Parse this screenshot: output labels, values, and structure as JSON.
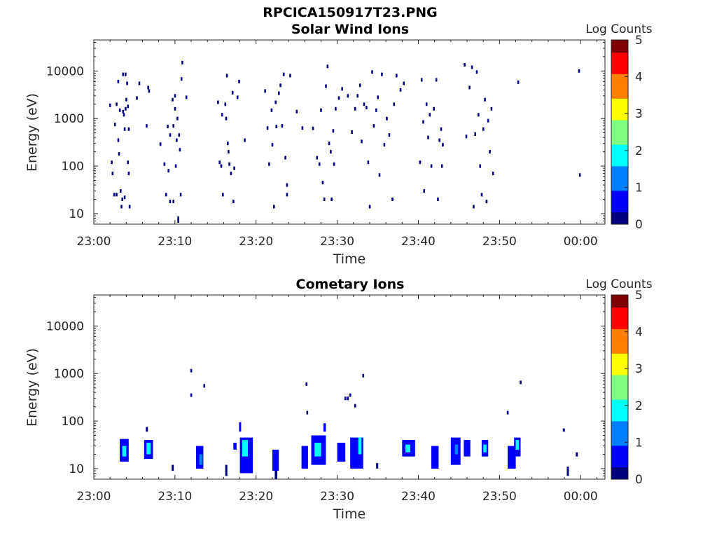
{
  "figure_title": "RPCICA150917T23.PNG",
  "colorscale": [
    "#00007f",
    "#0000ff",
    "#007fff",
    "#00ffff",
    "#7fff7f",
    "#ffff00",
    "#ff7f00",
    "#ff0000",
    "#7f0000"
  ],
  "chart_data": [
    {
      "type": "heatmap",
      "title": "Solar Wind Ions",
      "xlabel": "Time",
      "ylabel": "Energy (eV)",
      "x_ticks": [
        "23:00",
        "23:10",
        "23:20",
        "23:30",
        "23:40",
        "23:50",
        "00:00"
      ],
      "x_range_minutes": [
        0,
        63
      ],
      "y_scale": "log",
      "y_range": [
        6,
        45000
      ],
      "y_ticks": [
        10,
        100,
        1000,
        10000
      ],
      "y_tick_labels": [
        "10",
        "100",
        "1000",
        "10000"
      ],
      "colorbar": {
        "label": "Log Counts",
        "range": [
          0,
          5
        ],
        "ticks": [
          "0",
          "1",
          "2",
          "3",
          "4",
          "5"
        ]
      },
      "grid": false,
      "points": [
        [
          2.0,
          1900,
          0.2
        ],
        [
          2.2,
          120,
          0.2
        ],
        [
          2.3,
          70,
          0.2
        ],
        [
          2.6,
          750,
          0.2
        ],
        [
          2.5,
          25,
          0.2
        ],
        [
          2.8,
          2000,
          0.2
        ],
        [
          2.8,
          25,
          0.2
        ],
        [
          3.0,
          6000,
          0.2
        ],
        [
          3.0,
          350,
          0.2
        ],
        [
          3.1,
          180,
          0.2
        ],
        [
          3.2,
          1500,
          0.2
        ],
        [
          3.3,
          30,
          0.2
        ],
        [
          3.4,
          14,
          0.2
        ],
        [
          3.5,
          20,
          0.2
        ],
        [
          3.6,
          1400,
          0.2
        ],
        [
          3.6,
          8500,
          0.2
        ],
        [
          3.7,
          1200,
          0.2
        ],
        [
          3.8,
          600,
          0.2
        ],
        [
          3.8,
          22,
          0.2
        ],
        [
          3.9,
          1600,
          0.2
        ],
        [
          3.9,
          8500,
          0.2
        ],
        [
          4.0,
          2500,
          0.2
        ],
        [
          4.1,
          5500,
          0.2
        ],
        [
          4.2,
          1800,
          0.2
        ],
        [
          4.2,
          120,
          0.2
        ],
        [
          4.3,
          600,
          0.2
        ],
        [
          4.3,
          70,
          0.2
        ],
        [
          4.4,
          14,
          0.2
        ],
        [
          5.3,
          2700,
          0.2
        ],
        [
          5.6,
          5500,
          0.2
        ],
        [
          6.5,
          700,
          0.2
        ],
        [
          6.7,
          4500,
          0.2
        ],
        [
          6.8,
          3800,
          0.2
        ],
        [
          8.2,
          290,
          0.2
        ],
        [
          8.7,
          110,
          0.2
        ],
        [
          8.9,
          25,
          0.2
        ],
        [
          9.1,
          680,
          0.2
        ],
        [
          9.2,
          80,
          0.2
        ],
        [
          9.4,
          450,
          0.2
        ],
        [
          9.4,
          18,
          0.2
        ],
        [
          9.7,
          2500,
          0.2
        ],
        [
          9.8,
          700,
          0.2
        ],
        [
          9.8,
          18,
          0.2
        ],
        [
          10.0,
          1600,
          0.2
        ],
        [
          10.0,
          3000,
          0.2
        ],
        [
          10.1,
          100,
          0.2
        ],
        [
          10.2,
          350,
          0.2
        ],
        [
          10.3,
          1000,
          0.2
        ],
        [
          10.4,
          8,
          0.2
        ],
        [
          10.4,
          7,
          0.2
        ],
        [
          10.5,
          450,
          0.2
        ],
        [
          10.6,
          220,
          0.2
        ],
        [
          10.7,
          25,
          0.2
        ],
        [
          10.8,
          6800,
          0.2
        ],
        [
          10.9,
          15000,
          0.2
        ],
        [
          11.4,
          2800,
          0.2
        ],
        [
          15.3,
          2200,
          0.2
        ],
        [
          15.5,
          120,
          0.2
        ],
        [
          15.7,
          100,
          0.2
        ],
        [
          15.8,
          1200,
          0.2
        ],
        [
          15.9,
          25,
          0.2
        ],
        [
          16.2,
          2000,
          0.2
        ],
        [
          16.3,
          1000,
          0.2
        ],
        [
          16.4,
          8000,
          0.2
        ],
        [
          16.5,
          300,
          0.2
        ],
        [
          16.6,
          200,
          0.2
        ],
        [
          16.7,
          110,
          0.2
        ],
        [
          16.9,
          70,
          0.2
        ],
        [
          17.1,
          3500,
          0.2
        ],
        [
          17.2,
          18,
          0.2
        ],
        [
          17.3,
          90,
          0.2
        ],
        [
          17.7,
          2800,
          0.2
        ],
        [
          17.9,
          6000,
          0.2
        ],
        [
          18.6,
          350,
          0.2
        ],
        [
          21.1,
          3800,
          0.2
        ],
        [
          21.4,
          630,
          0.2
        ],
        [
          21.6,
          110,
          0.2
        ],
        [
          21.9,
          1500,
          0.2
        ],
        [
          22.0,
          280,
          0.2
        ],
        [
          22.2,
          14,
          0.2
        ],
        [
          22.4,
          2200,
          0.2
        ],
        [
          22.5,
          680,
          0.2
        ],
        [
          22.8,
          3400,
          0.2
        ],
        [
          23.0,
          5000,
          0.2
        ],
        [
          23.2,
          700,
          0.2
        ],
        [
          23.4,
          8500,
          0.2
        ],
        [
          23.6,
          150,
          0.2
        ],
        [
          23.8,
          40,
          0.2
        ],
        [
          23.8,
          25,
          0.2
        ],
        [
          24.2,
          8000,
          0.2
        ],
        [
          25.0,
          1400,
          0.2
        ],
        [
          25.7,
          630,
          0.2
        ],
        [
          27.0,
          620,
          0.2
        ],
        [
          27.5,
          150,
          0.2
        ],
        [
          27.8,
          110,
          0.2
        ],
        [
          28.0,
          1500,
          0.2
        ],
        [
          28.2,
          45,
          0.2
        ],
        [
          28.4,
          20,
          0.2
        ],
        [
          28.6,
          4800,
          0.2
        ],
        [
          28.8,
          12500,
          0.2
        ],
        [
          29.0,
          300,
          0.2
        ],
        [
          29.2,
          200,
          0.2
        ],
        [
          29.3,
          20,
          0.2
        ],
        [
          29.5,
          550,
          0.2
        ],
        [
          29.6,
          110,
          0.2
        ],
        [
          29.8,
          1600,
          0.2
        ],
        [
          30.2,
          2700,
          0.2
        ],
        [
          30.6,
          4200,
          0.2
        ],
        [
          31.3,
          3000,
          0.2
        ],
        [
          31.8,
          520,
          0.2
        ],
        [
          32.2,
          1600,
          0.2
        ],
        [
          32.5,
          3000,
          0.2
        ],
        [
          32.8,
          5000,
          0.2
        ],
        [
          33.0,
          330,
          0.2
        ],
        [
          33.3,
          2000,
          0.2
        ],
        [
          33.6,
          1700,
          0.2
        ],
        [
          33.8,
          120,
          0.2
        ],
        [
          34.0,
          14,
          0.2
        ],
        [
          34.3,
          9500,
          0.2
        ],
        [
          34.5,
          700,
          0.2
        ],
        [
          34.8,
          1500,
          0.2
        ],
        [
          35.0,
          2800,
          0.2
        ],
        [
          35.2,
          65,
          0.2
        ],
        [
          35.5,
          8500,
          0.2
        ],
        [
          35.8,
          280,
          0.2
        ],
        [
          36.1,
          1000,
          0.2
        ],
        [
          36.4,
          450,
          0.2
        ],
        [
          36.8,
          20,
          0.2
        ],
        [
          37.0,
          2000,
          0.2
        ],
        [
          37.3,
          8000,
          0.2
        ],
        [
          37.8,
          4000,
          0.2
        ],
        [
          38.2,
          5500,
          0.2
        ],
        [
          40.2,
          120,
          0.2
        ],
        [
          40.4,
          6500,
          0.2
        ],
        [
          40.6,
          850,
          0.2
        ],
        [
          40.7,
          30,
          0.2
        ],
        [
          41.0,
          2000,
          0.2
        ],
        [
          41.2,
          400,
          0.2
        ],
        [
          41.4,
          1200,
          0.2
        ],
        [
          41.6,
          100,
          0.2
        ],
        [
          41.9,
          1600,
          0.2
        ],
        [
          42.2,
          6500,
          0.2
        ],
        [
          42.4,
          20,
          0.2
        ],
        [
          42.6,
          350,
          0.2
        ],
        [
          42.9,
          100,
          0.2
        ],
        [
          42.8,
          600,
          0.2
        ],
        [
          43.0,
          280,
          0.2
        ],
        [
          45.7,
          13500,
          0.2
        ],
        [
          45.9,
          420,
          0.2
        ],
        [
          46.3,
          4500,
          0.2
        ],
        [
          46.6,
          12000,
          0.2
        ],
        [
          46.8,
          14,
          0.2
        ],
        [
          47.0,
          470,
          0.2
        ],
        [
          47.2,
          9500,
          0.2
        ],
        [
          47.4,
          1200,
          0.2
        ],
        [
          47.6,
          100,
          0.2
        ],
        [
          47.8,
          25,
          0.2
        ],
        [
          48.0,
          600,
          0.2
        ],
        [
          48.2,
          2500,
          0.2
        ],
        [
          48.4,
          18,
          0.2
        ],
        [
          48.6,
          900,
          0.2
        ],
        [
          48.8,
          200,
          0.2
        ],
        [
          49.0,
          1600,
          0.2
        ],
        [
          49.2,
          70,
          0.2
        ],
        [
          52.3,
          5800,
          0.2
        ],
        [
          59.8,
          10000,
          0.2
        ],
        [
          59.9,
          65,
          0.2
        ]
      ]
    },
    {
      "type": "heatmap",
      "title": "Cometary Ions",
      "xlabel": "Time",
      "ylabel": "Energy (eV)",
      "x_ticks": [
        "23:00",
        "23:10",
        "23:20",
        "23:30",
        "23:40",
        "23:50",
        "00:00"
      ],
      "x_range_minutes": [
        0,
        63
      ],
      "y_scale": "log",
      "y_range": [
        6,
        45000
      ],
      "y_ticks": [
        10,
        100,
        1000,
        10000
      ],
      "y_tick_labels": [
        "10",
        "100",
        "1000",
        "10000"
      ],
      "colorbar": {
        "label": "Log Counts",
        "range": [
          0,
          5
        ],
        "ticks": [
          "0",
          "1",
          "2",
          "3",
          "4",
          "5"
        ]
      },
      "grid": false,
      "blocks": [
        [
          3.2,
          4.3,
          14,
          42,
          0.5
        ],
        [
          3.5,
          4.0,
          18,
          30,
          1.7
        ],
        [
          6.2,
          7.3,
          16,
          40,
          0.6
        ],
        [
          6.5,
          7.0,
          20,
          35,
          1.8
        ],
        [
          6.4,
          6.6,
          60,
          75,
          0.3
        ],
        [
          9.6,
          9.8,
          9,
          12,
          0.2
        ],
        [
          12.6,
          13.5,
          10,
          30,
          0.5
        ],
        [
          13.0,
          13.4,
          12,
          20,
          1.2
        ],
        [
          16.2,
          16.4,
          7,
          12,
          0.2
        ],
        [
          17.2,
          17.6,
          25,
          35,
          0.8
        ],
        [
          18.0,
          19.6,
          8,
          45,
          0.7
        ],
        [
          18.3,
          19.0,
          18,
          40,
          1.6
        ],
        [
          17.9,
          18.1,
          60,
          95,
          0.4
        ],
        [
          22.0,
          22.8,
          9,
          25,
          0.6
        ],
        [
          22.3,
          22.6,
          6,
          9,
          0.3
        ],
        [
          25.6,
          26.4,
          10,
          30,
          0.6
        ],
        [
          26.8,
          28.6,
          12,
          50,
          0.7
        ],
        [
          27.2,
          28.0,
          18,
          35,
          1.8
        ],
        [
          28.3,
          28.6,
          60,
          90,
          0.4
        ],
        [
          30.0,
          31.0,
          14,
          35,
          0.6
        ],
        [
          31.6,
          33.2,
          10,
          45,
          0.6
        ],
        [
          32.6,
          33.0,
          20,
          45,
          1.7
        ],
        [
          34.8,
          35.0,
          10,
          13,
          0.2
        ],
        [
          38.0,
          39.6,
          18,
          40,
          0.7
        ],
        [
          38.4,
          39.0,
          22,
          32,
          1.6
        ],
        [
          41.6,
          42.5,
          10,
          30,
          0.6
        ],
        [
          44.0,
          45.2,
          12,
          45,
          0.6
        ],
        [
          44.5,
          44.9,
          20,
          32,
          1.5
        ],
        [
          45.6,
          46.4,
          18,
          40,
          0.7
        ],
        [
          47.8,
          48.6,
          18,
          40,
          0.7
        ],
        [
          48.0,
          48.4,
          22,
          32,
          1.6
        ],
        [
          51.0,
          52.0,
          10,
          30,
          0.6
        ],
        [
          51.8,
          52.6,
          18,
          45,
          0.7
        ],
        [
          52.0,
          52.4,
          25,
          40,
          1.6
        ],
        [
          57.8,
          58.0,
          60,
          70,
          0.3
        ],
        [
          58.3,
          58.5,
          7,
          11,
          0.3
        ],
        [
          59.4,
          59.6,
          18,
          22,
          0.3
        ]
      ],
      "points": [
        [
          12.0,
          1150,
          0.2
        ],
        [
          12.0,
          350,
          0.2
        ],
        [
          13.6,
          550,
          0.2
        ],
        [
          26.2,
          600,
          0.2
        ],
        [
          26.3,
          150,
          0.2
        ],
        [
          31.0,
          300,
          0.2
        ],
        [
          31.3,
          300,
          0.2
        ],
        [
          31.6,
          350,
          0.2
        ],
        [
          32.2,
          210,
          0.2
        ],
        [
          33.2,
          900,
          0.2
        ],
        [
          51.0,
          150,
          0.2
        ],
        [
          52.6,
          650,
          0.2
        ]
      ]
    }
  ]
}
